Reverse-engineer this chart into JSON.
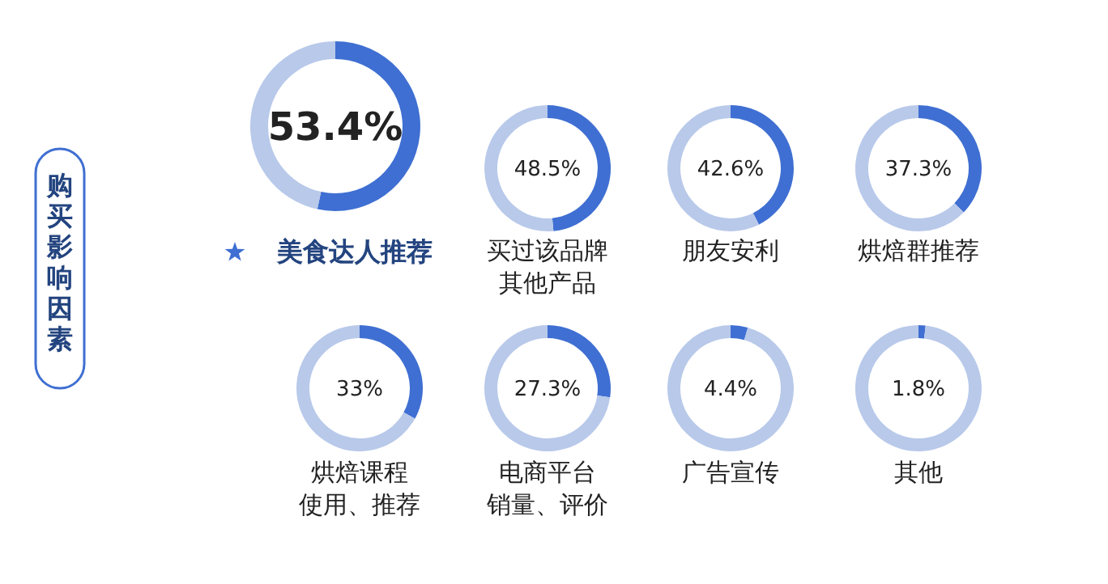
{
  "chart_data": [
    {
      "type": "other",
      "title": "购买影响因素"
    },
    {
      "type": "donut",
      "title": "美食达人推荐",
      "categories": [
        null,
        null
      ],
      "values": [
        53.4,
        46.6
      ],
      "colors": [
        "#3f6fd2",
        "#b8c9ea"
      ],
      "annotations": [
        "53.4%"
      ]
    },
    {
      "type": "donut",
      "title": "买过该品牌其他产品",
      "categories": [
        null,
        null
      ],
      "values": [
        48.5,
        51.5
      ],
      "colors": [
        "#3f6fd2",
        "#b8c9ea"
      ],
      "annotations": [
        "48.5%"
      ]
    },
    {
      "type": "donut",
      "title": "朋友安利",
      "categories": [
        null,
        null
      ],
      "values": [
        42.6,
        57.4
      ],
      "colors": [
        "#3f6fd2",
        "#b8c9ea"
      ],
      "annotations": [
        "42.6%"
      ]
    },
    {
      "type": "donut",
      "title": "烘焙群推荐",
      "categories": [
        null,
        null
      ],
      "values": [
        37.3,
        62.7
      ],
      "colors": [
        "#3f6fd2",
        "#b8c9ea"
      ],
      "annotations": [
        "37.3%"
      ]
    },
    {
      "type": "donut",
      "title": "烘焙课程使用、推荐",
      "categories": [
        null,
        null
      ],
      "values": [
        33,
        67
      ],
      "colors": [
        "#3f6fd2",
        "#b8c9ea"
      ],
      "annotations": [
        "33%"
      ]
    },
    {
      "type": "donut",
      "title": "电商平台销量、评价",
      "categories": [
        null,
        null
      ],
      "values": [
        27.3,
        72.7
      ],
      "colors": [
        "#3f6fd2",
        "#b8c9ea"
      ],
      "annotations": [
        "27.3%"
      ]
    },
    {
      "type": "donut",
      "title": "广告宣传",
      "categories": [
        null,
        null
      ],
      "values": [
        4.4,
        95.6
      ],
      "colors": [
        "#3f6fd2",
        "#b8c9ea"
      ],
      "annotations": [
        "4.4%"
      ]
    },
    {
      "type": "donut",
      "title": "其他",
      "categories": [
        null,
        null
      ],
      "values": [
        1.8,
        98.2
      ],
      "colors": [
        "#3f6fd2",
        "#b8c9ea"
      ],
      "annotations": [
        "1.8%"
      ]
    }
  ]
}
